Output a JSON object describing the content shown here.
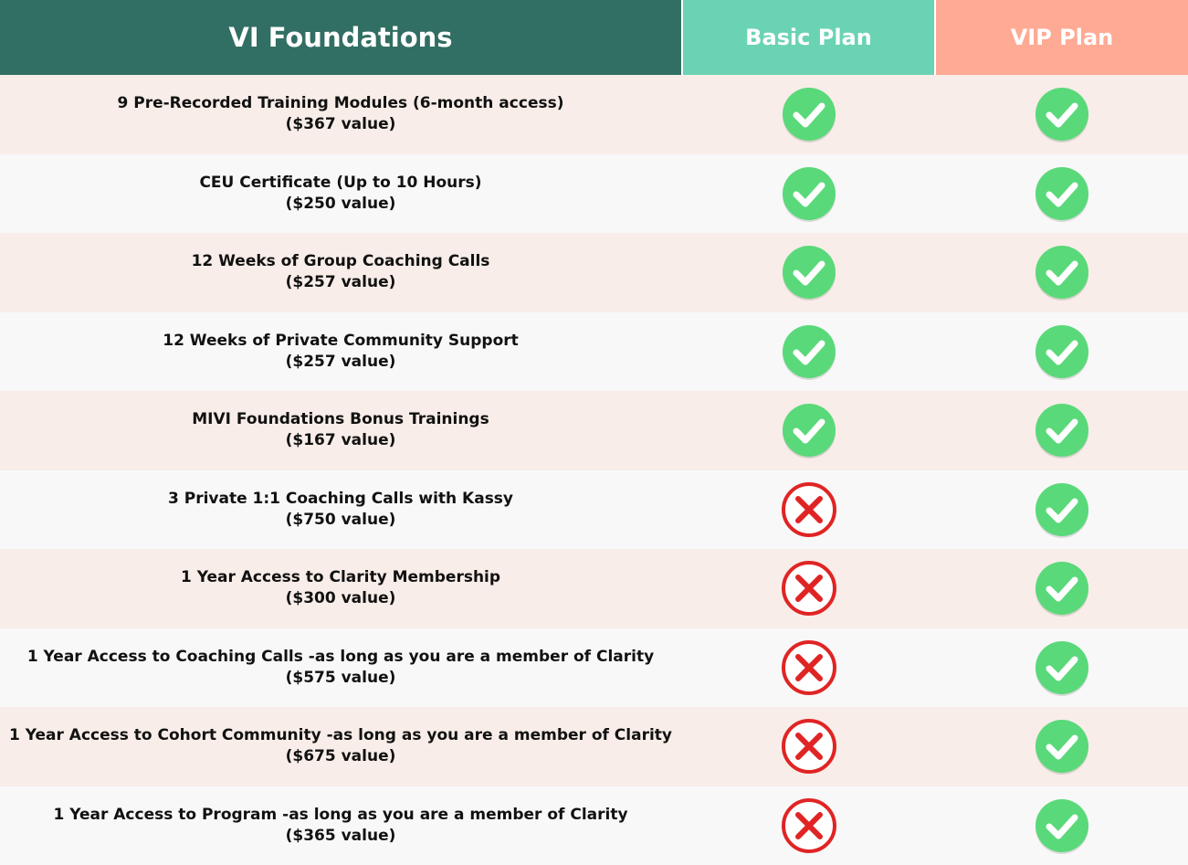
{
  "header": {
    "feature_title": "VI Foundations",
    "basic_title": "Basic Plan",
    "vip_title": "VIP Plan"
  },
  "colors": {
    "header_feature": "#316e63",
    "header_basic": "#6ad3b4",
    "header_vip": "#ffaa94",
    "row_alt": "#f8ede8",
    "row_plain": "#f8f8f8",
    "check": "#5ad97a",
    "cross": "#e02424"
  },
  "rows": [
    {
      "feature": "9 Pre-Recorded Training Modules (6-month access)",
      "value": "($367 value)",
      "basic": "check-icon",
      "vip": "check-icon"
    },
    {
      "feature": "CEU Certificate (Up to 10 Hours)",
      "value": "($250 value)",
      "basic": "check-icon",
      "vip": "check-icon"
    },
    {
      "feature": "12 Weeks of Group Coaching Calls",
      "value": "($257 value)",
      "basic": "check-icon",
      "vip": "check-icon"
    },
    {
      "feature": "12 Weeks of Private Community Support",
      "value": "($257 value)",
      "basic": "check-icon",
      "vip": "check-icon"
    },
    {
      "feature": "MIVI Foundations Bonus Trainings",
      "value": "($167 value)",
      "basic": "check-icon",
      "vip": "check-icon"
    },
    {
      "feature": "3 Private 1:1 Coaching Calls with Kassy",
      "value": "($750 value)",
      "basic": "cross-icon",
      "vip": "check-icon"
    },
    {
      "feature": "1 Year Access to Clarity Membership",
      "value": "($300 value)",
      "basic": "cross-icon",
      "vip": "check-icon"
    },
    {
      "feature": "1 Year Access to Coaching Calls -as long as you are a member of Clarity",
      "value": "($575 value)",
      "basic": "cross-icon",
      "vip": "check-icon"
    },
    {
      "feature": "1 Year Access to Cohort Community -as long as you are a member of Clarity",
      "value": "($675 value)",
      "basic": "cross-icon",
      "vip": "check-icon"
    },
    {
      "feature": "1 Year Access to Program -as long as you are a member of Clarity",
      "value": "($365 value)",
      "basic": "cross-icon",
      "vip": "check-icon"
    }
  ]
}
